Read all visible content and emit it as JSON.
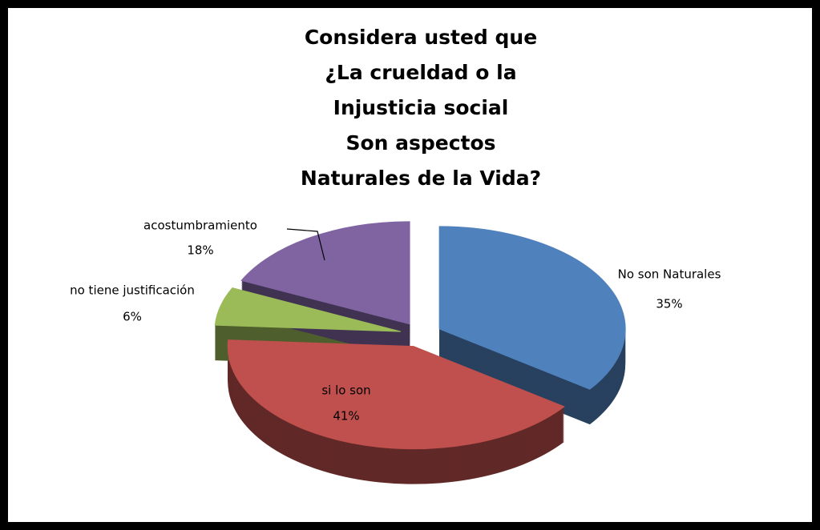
{
  "chart_data": {
    "type": "pie",
    "title": [
      "Considera usted que",
      "¿La crueldad o la",
      "Injusticia social",
      "Son aspectos",
      "Naturales de la Vida?"
    ],
    "categories": [
      "No son Naturales",
      "si lo son",
      "no tiene justificación",
      "acostumbramiento"
    ],
    "values": [
      35,
      41,
      6,
      18
    ],
    "value_labels": [
      "35%",
      "41%",
      "6%",
      "18%"
    ],
    "colors": [
      "#4f81bd",
      "#c0504d",
      "#9bbb59",
      "#8064a2"
    ]
  }
}
